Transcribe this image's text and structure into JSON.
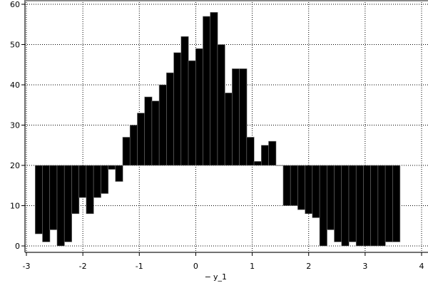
{
  "chart_data": {
    "type": "bar",
    "subtype": "histogram-from-baseline",
    "baseline": 20,
    "bin_start": -2.845,
    "bin_width": 0.1292,
    "values": [
      3,
      1,
      4,
      0,
      1,
      8,
      12,
      8,
      12,
      13,
      19,
      16,
      27,
      30,
      33,
      37,
      36,
      40,
      43,
      48,
      52,
      46,
      49,
      57,
      58,
      50,
      38,
      44,
      44,
      27,
      21,
      25,
      26,
      20,
      10,
      10,
      9,
      8,
      7,
      0,
      4,
      1,
      0,
      1,
      0,
      0,
      0,
      0,
      1,
      1
    ],
    "xlim": [
      -3,
      4
    ],
    "ylim": [
      0,
      60
    ],
    "xticks": [
      "-3",
      "-2",
      "-1",
      "0",
      "1",
      "2",
      "3",
      "4"
    ],
    "yticks": [
      "0",
      "10",
      "20",
      "30",
      "40",
      "50",
      "60"
    ],
    "xlabel": "y_1",
    "legend_marker": "−",
    "grid": true,
    "color": "#000000"
  }
}
